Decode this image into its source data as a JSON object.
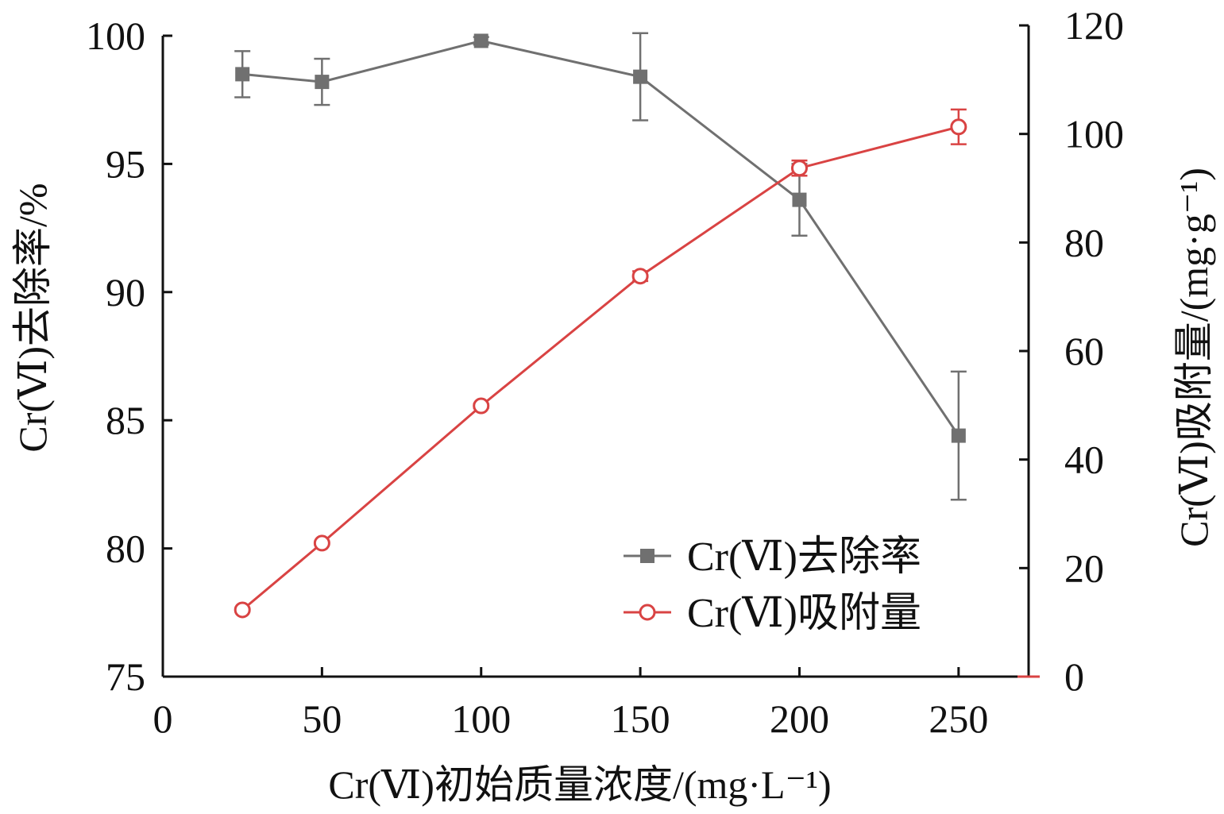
{
  "chart_data": {
    "type": "line",
    "x": [
      25,
      50,
      100,
      150,
      200,
      250
    ],
    "x_axis": {
      "label": "Cr(Ⅵ)初始质量浓度/(mg·L⁻¹)",
      "min": 0,
      "max": 272,
      "ticks": [
        0,
        50,
        100,
        150,
        200,
        250
      ],
      "tick_labels": [
        "0",
        "50",
        "100",
        "150",
        "200",
        "250"
      ]
    },
    "y_left": {
      "label": "Cr(Ⅵ)去除率/%",
      "min": 75,
      "max": 100,
      "ticks": [
        75,
        80,
        85,
        90,
        95,
        100
      ],
      "tick_labels": [
        "75",
        "80",
        "85",
        "90",
        "95",
        "100"
      ]
    },
    "y_right": {
      "label": "Cr(Ⅵ)吸附量/(mg·g⁻¹)",
      "min": 0,
      "max": 120,
      "ticks": [
        0,
        20,
        40,
        60,
        80,
        100,
        120
      ],
      "tick_labels": [
        "0",
        "20",
        "40",
        "60",
        "80",
        "100",
        "120"
      ]
    },
    "series": [
      {
        "name": "Cr(Ⅵ)去除率",
        "axis": "left",
        "marker": "filled-square",
        "color": "#707070",
        "values": [
          98.5,
          98.2,
          99.8,
          98.4,
          93.6,
          84.4
        ],
        "errors": [
          0.9,
          0.9,
          0.15,
          1.7,
          1.4,
          2.5
        ]
      },
      {
        "name": "Cr(Ⅵ)吸附量",
        "axis": "right",
        "marker": "open-circle",
        "color": "#d94343",
        "values": [
          12.3,
          24.6,
          49.9,
          73.8,
          93.7,
          101.3
        ],
        "errors": [
          0.3,
          0.3,
          0.4,
          0.9,
          1.4,
          3.2
        ]
      }
    ],
    "legend": {
      "position": "bottom-right",
      "entries": [
        "Cr(Ⅵ)去除率",
        "Cr(Ⅵ)吸附量"
      ]
    },
    "grid": false
  }
}
